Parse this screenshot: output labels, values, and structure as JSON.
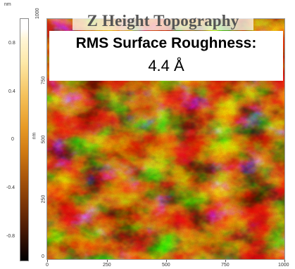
{
  "title": "Z Height Topography",
  "rms": {
    "label": "RMS Surface Roughness:",
    "value": "4.4 Å"
  },
  "colorbar": {
    "unit": "nm",
    "ticks": [
      "0.8",
      "0.4",
      "0",
      "-0.4",
      "-0.8"
    ],
    "range": [
      -1.0,
      1.0
    ],
    "colors": [
      "#000000",
      "#4a1a04",
      "#a8550a",
      "#e79a25",
      "#fde9a8",
      "#ffffff"
    ]
  },
  "image_axes": {
    "y_unit": "nm",
    "x_ticks": [
      "0",
      "250",
      "500",
      "750",
      "1000"
    ],
    "y_ticks": [
      "0",
      "250",
      "500",
      "750",
      "1000"
    ]
  }
}
